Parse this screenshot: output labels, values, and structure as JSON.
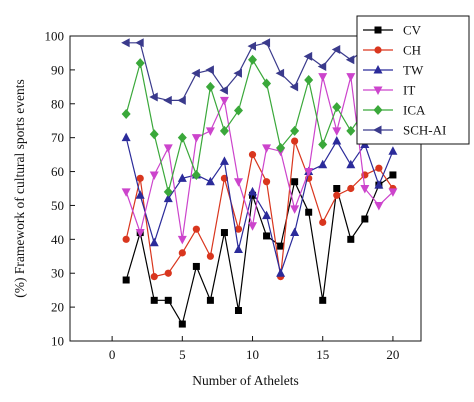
{
  "chart_data": {
    "type": "line",
    "xlabel": "Number of Athelets",
    "ylabel": "(%) Framework of cultural sports events",
    "xlim": [
      -3,
      22
    ],
    "ylim": [
      10,
      100
    ],
    "x_ticks": [
      0,
      5,
      10,
      15,
      20
    ],
    "y_ticks": [
      10,
      20,
      30,
      40,
      50,
      60,
      70,
      80,
      90,
      100
    ],
    "legend_position": "top-right",
    "x": [
      1,
      2,
      3,
      4,
      5,
      6,
      7,
      8,
      9,
      10,
      11,
      12,
      13,
      14,
      15,
      16,
      17,
      18,
      19,
      20
    ],
    "series": [
      {
        "name": "CV",
        "color": "#000000",
        "marker": "square",
        "values": [
          28,
          42,
          22,
          22,
          15,
          32,
          22,
          42,
          19,
          53,
          41,
          38,
          57,
          48,
          22,
          55,
          40,
          46,
          56,
          59
        ]
      },
      {
        "name": "CH",
        "color": "#d9361e",
        "marker": "circle",
        "values": [
          40,
          58,
          29,
          30,
          36,
          43,
          35,
          58,
          43,
          65,
          57,
          29,
          69,
          58,
          45,
          53,
          55,
          59,
          61,
          55
        ]
      },
      {
        "name": "TW",
        "color": "#2b2b9a",
        "marker": "triangle-up",
        "values": [
          70,
          53,
          39,
          52,
          58,
          59,
          57,
          63,
          37,
          54,
          47,
          30,
          42,
          60,
          62,
          69,
          62,
          68,
          56,
          66
        ]
      },
      {
        "name": "IT",
        "color": "#cc44cc",
        "marker": "triangle-down",
        "values": [
          54,
          42,
          59,
          67,
          40,
          70,
          72,
          81,
          57,
          44,
          67,
          66,
          49,
          60,
          88,
          72,
          88,
          55,
          50,
          54
        ]
      },
      {
        "name": "ICA",
        "color": "#3aa83a",
        "marker": "diamond",
        "values": [
          77,
          92,
          71,
          54,
          70,
          59,
          85,
          72,
          78,
          93,
          86,
          67,
          72,
          87,
          68,
          79,
          72,
          78,
          73,
          73
        ]
      },
      {
        "name": "SCH-AI",
        "color": "#3a3a8c",
        "marker": "triangle-left",
        "values": [
          98,
          98,
          82,
          81,
          81,
          89,
          90,
          84,
          89,
          97,
          98,
          89,
          85,
          94,
          91,
          96,
          93,
          96,
          96,
          96
        ]
      }
    ]
  }
}
